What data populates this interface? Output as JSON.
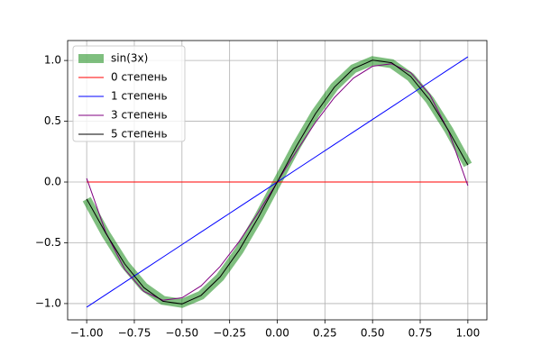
{
  "chart_data": {
    "type": "line",
    "x": [
      -1,
      -0.9,
      -0.8,
      -0.7,
      -0.6,
      -0.5,
      -0.4,
      -0.3,
      -0.2,
      -0.1,
      0,
      0.1,
      0.2,
      0.3,
      0.4,
      0.5,
      0.6,
      0.7,
      0.8,
      0.9,
      1
    ],
    "series": [
      {
        "name": "sin(3x)",
        "color": "#008000",
        "width": 10,
        "opacity": 0.5,
        "values": [
          -0.1411,
          -0.4274,
          -0.6755,
          -0.8632,
          -0.9738,
          -0.9975,
          -0.932,
          -0.7833,
          -0.5646,
          -0.2955,
          0,
          0.2955,
          0.5646,
          0.7833,
          0.932,
          0.9975,
          0.9738,
          0.8632,
          0.6755,
          0.4274,
          0.1411
        ]
      },
      {
        "name": "0 степень",
        "color": "#ff0000",
        "width": 1,
        "opacity": 1,
        "values": [
          0,
          0,
          0,
          0,
          0,
          0,
          0,
          0,
          0,
          0,
          0,
          0,
          0,
          0,
          0,
          0,
          0,
          0,
          0,
          0,
          0
        ]
      },
      {
        "name": "1 степень",
        "color": "#0000ff",
        "width": 1,
        "opacity": 1,
        "values": [
          -1.03,
          -0.927,
          -0.824,
          -0.721,
          -0.618,
          -0.515,
          -0.412,
          -0.309,
          -0.206,
          -0.103,
          0,
          0.103,
          0.206,
          0.309,
          0.412,
          0.515,
          0.618,
          0.721,
          0.824,
          0.927,
          1.03
        ]
      },
      {
        "name": "3 степень",
        "color": "#800080",
        "width": 1,
        "opacity": 1,
        "values": [
          0.03,
          -0.4142,
          -0.719,
          -0.9001,
          -0.9727,
          -0.9525,
          -0.8549,
          -0.6953,
          -0.4894,
          -0.2524,
          0,
          0.2524,
          0.4894,
          0.6953,
          0.8549,
          0.9525,
          0.9727,
          0.9001,
          0.719,
          0.4142,
          -0.03
        ]
      },
      {
        "name": "5 степень",
        "color": "#000000",
        "width": 1,
        "opacity": 1,
        "values": [
          -0.14,
          -0.4202,
          -0.6745,
          -0.8687,
          -0.9813,
          -1.0028,
          -0.9332,
          -0.7809,
          -0.5608,
          -0.2928,
          0,
          0.2928,
          0.5608,
          0.7809,
          0.9332,
          1.0028,
          0.9813,
          0.8687,
          0.6745,
          0.4202,
          0.14
        ]
      }
    ],
    "xlim": [
      -1.1,
      1.1
    ],
    "ylim": [
      -1.134,
      1.164
    ],
    "xticks": [
      {
        "value": -1,
        "label": "−1.00"
      },
      {
        "value": -0.75,
        "label": "−0.75"
      },
      {
        "value": -0.5,
        "label": "−0.50"
      },
      {
        "value": -0.25,
        "label": "−0.25"
      },
      {
        "value": 0,
        "label": "0.00"
      },
      {
        "value": 0.25,
        "label": "0.25"
      },
      {
        "value": 0.5,
        "label": "0.50"
      },
      {
        "value": 0.75,
        "label": "0.75"
      },
      {
        "value": 1,
        "label": "1.00"
      }
    ],
    "yticks": [
      {
        "value": -1,
        "label": "−1.0"
      },
      {
        "value": -0.5,
        "label": "−0.5"
      },
      {
        "value": 0,
        "label": "0.0"
      },
      {
        "value": 0.5,
        "label": "0.5"
      },
      {
        "value": 1,
        "label": "1.0"
      }
    ],
    "grid": true,
    "legend": "upper-left"
  }
}
